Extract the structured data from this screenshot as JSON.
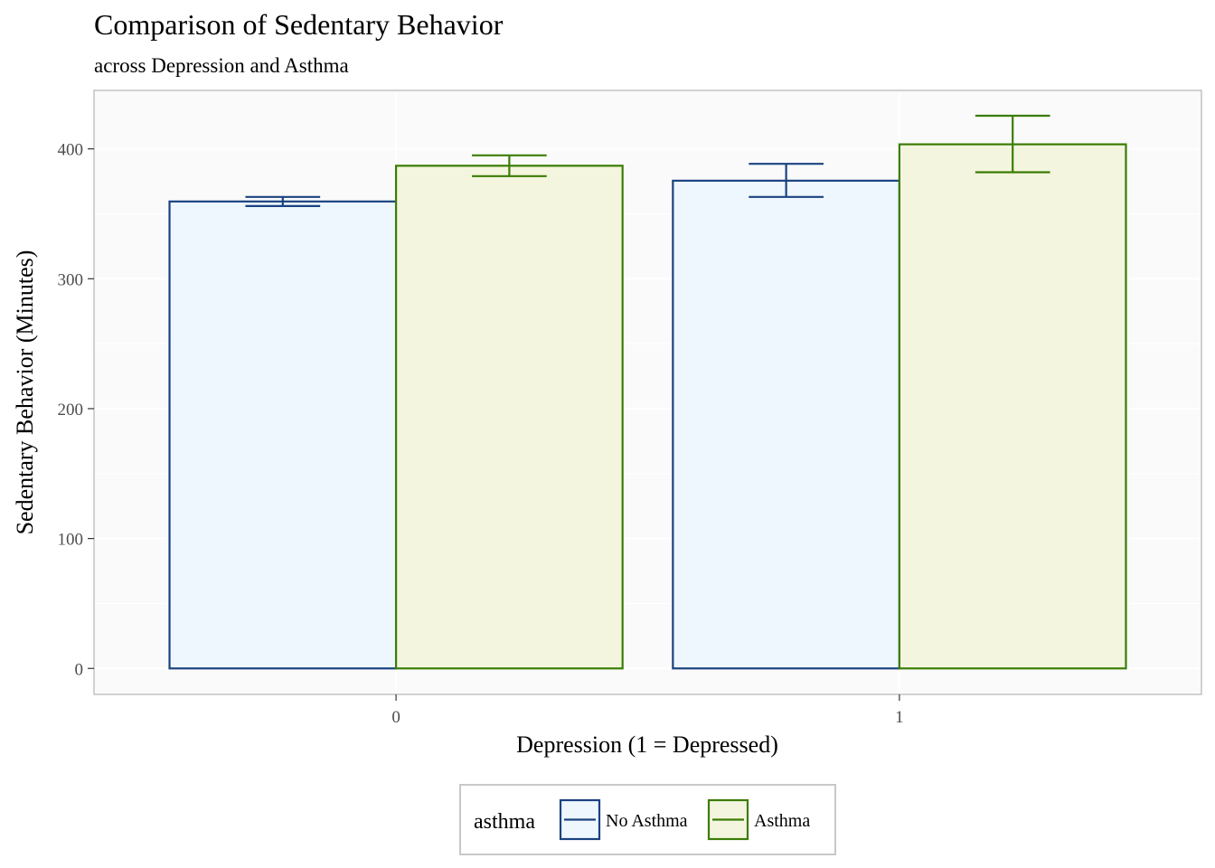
{
  "chart_data": {
    "type": "bar",
    "title": "Comparison of Sedentary Behavior",
    "subtitle": "across Depression and Asthma",
    "xlabel": "Depression (1 = Depressed)",
    "ylabel": "Sedentary Behavior (Minutes)",
    "categories": [
      "0",
      "1"
    ],
    "ylim": [
      -20,
      445
    ],
    "yticks": [
      0,
      100,
      200,
      300,
      400
    ],
    "grid": true,
    "legend": {
      "title": "asthma",
      "position": "bottom"
    },
    "series": [
      {
        "name": "No Asthma",
        "stroke": "#1a4280",
        "fill": "#eef6fe",
        "values": [
          359.5,
          375.5
        ],
        "error_low": [
          356.0,
          363.0
        ],
        "error_high": [
          363.0,
          388.5
        ]
      },
      {
        "name": "Asthma",
        "stroke": "#3a7d05",
        "fill": "#f4f5de",
        "values": [
          387.0,
          403.5
        ],
        "error_low": [
          379.0,
          382.0
        ],
        "error_high": [
          395.0,
          425.5
        ]
      }
    ]
  }
}
